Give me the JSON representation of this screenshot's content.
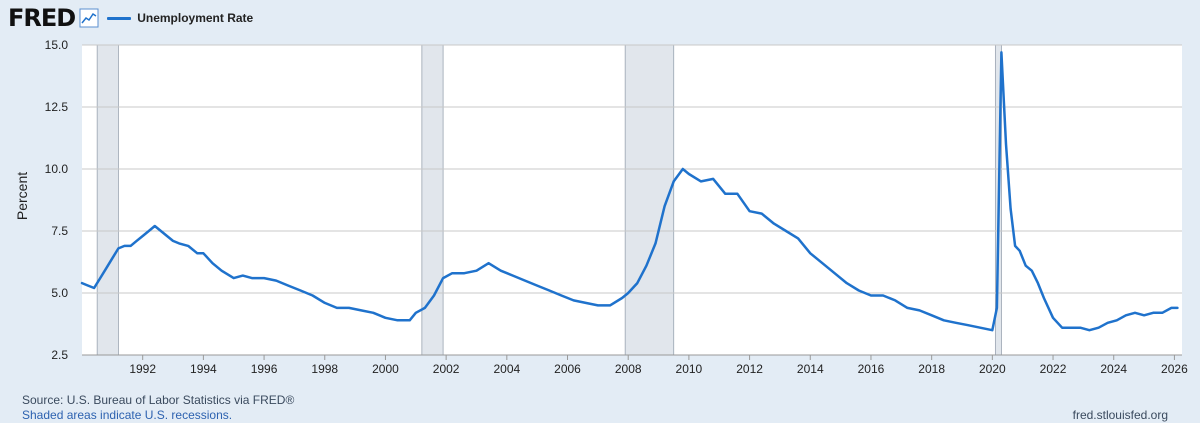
{
  "header": {
    "logo_text": "FRED",
    "logo_icon": "line-chart-icon",
    "legend_label": "Unemployment Rate",
    "legend_color": "#1f72cc"
  },
  "footer": {
    "source": "Source: U.S. Bureau of Labor Statistics via FRED®",
    "recession_note": "Shaded areas indicate U.S. recessions.",
    "site": "fred.stlouisfed.org"
  },
  "colors": {
    "background": "#e3ecf5",
    "plot_background": "#ffffff",
    "line": "#1f72cc",
    "recession": "#e1e6ec",
    "grid": "#c8c8c8",
    "recession_link": "#2d62b0"
  },
  "chart_data": {
    "type": "line",
    "title": "",
    "xlabel": "",
    "ylabel": "Percent",
    "xlim": [
      1990.0,
      2026.25
    ],
    "ylim": [
      2.5,
      15.0
    ],
    "yticks": [
      2.5,
      5.0,
      7.5,
      10.0,
      12.5,
      15.0
    ],
    "ytick_labels": [
      "2.5",
      "5.0",
      "7.5",
      "10.0",
      "12.5",
      "15.0"
    ],
    "xticks": [
      1992,
      1994,
      1996,
      1998,
      2000,
      2002,
      2004,
      2006,
      2008,
      2010,
      2012,
      2014,
      2016,
      2018,
      2020,
      2022,
      2024,
      2026
    ],
    "xtick_labels": [
      "1992",
      "1994",
      "1996",
      "1998",
      "2000",
      "2002",
      "2004",
      "2006",
      "2008",
      "2010",
      "2012",
      "2014",
      "2016",
      "2018",
      "2020",
      "2022",
      "2024",
      "2026"
    ],
    "grid": true,
    "legend_position": "top-left",
    "recessions": [
      {
        "start": 1990.5,
        "end": 1991.2
      },
      {
        "start": 2001.2,
        "end": 2001.9
      },
      {
        "start": 2007.9,
        "end": 2009.5
      },
      {
        "start": 2020.1,
        "end": 2020.3
      }
    ],
    "series": [
      {
        "name": "Unemployment Rate",
        "x": [
          1990.0,
          1990.2,
          1990.4,
          1990.6,
          1990.8,
          1991.0,
          1991.2,
          1991.4,
          1991.6,
          1991.8,
          1992.0,
          1992.2,
          1992.4,
          1992.6,
          1992.8,
          1993.0,
          1993.2,
          1993.5,
          1993.8,
          1994.0,
          1994.3,
          1994.6,
          1995.0,
          1995.3,
          1995.6,
          1996.0,
          1996.4,
          1996.8,
          1997.2,
          1997.6,
          1998.0,
          1998.4,
          1998.8,
          1999.2,
          1999.6,
          2000.0,
          2000.4,
          2000.8,
          2001.0,
          2001.3,
          2001.6,
          2001.9,
          2002.2,
          2002.6,
          2003.0,
          2003.4,
          2003.8,
          2004.2,
          2004.6,
          2005.0,
          2005.4,
          2005.8,
          2006.2,
          2006.6,
          2007.0,
          2007.4,
          2007.8,
          2008.0,
          2008.3,
          2008.6,
          2008.9,
          2009.2,
          2009.5,
          2009.8,
          2010.0,
          2010.4,
          2010.8,
          2011.2,
          2011.6,
          2012.0,
          2012.4,
          2012.8,
          2013.2,
          2013.6,
          2014.0,
          2014.4,
          2014.8,
          2015.2,
          2015.6,
          2016.0,
          2016.4,
          2016.8,
          2017.2,
          2017.6,
          2018.0,
          2018.4,
          2018.8,
          2019.2,
          2019.6,
          2020.0,
          2020.15,
          2020.3,
          2020.45,
          2020.6,
          2020.75,
          2020.9,
          2021.1,
          2021.3,
          2021.5,
          2021.7,
          2022.0,
          2022.3,
          2022.6,
          2022.9,
          2023.2,
          2023.5,
          2023.8,
          2024.1,
          2024.4,
          2024.7,
          2025.0,
          2025.3,
          2025.6,
          2025.9,
          2026.1
        ],
        "values": [
          5.4,
          5.3,
          5.2,
          5.6,
          6.0,
          6.4,
          6.8,
          6.9,
          6.9,
          7.1,
          7.3,
          7.5,
          7.7,
          7.5,
          7.3,
          7.1,
          7.0,
          6.9,
          6.6,
          6.6,
          6.2,
          5.9,
          5.6,
          5.7,
          5.6,
          5.6,
          5.5,
          5.3,
          5.1,
          4.9,
          4.6,
          4.4,
          4.4,
          4.3,
          4.2,
          4.0,
          3.9,
          3.9,
          4.2,
          4.4,
          4.9,
          5.6,
          5.8,
          5.8,
          5.9,
          6.2,
          5.9,
          5.7,
          5.5,
          5.3,
          5.1,
          4.9,
          4.7,
          4.6,
          4.5,
          4.5,
          4.8,
          5.0,
          5.4,
          6.1,
          7.0,
          8.5,
          9.5,
          10.0,
          9.8,
          9.5,
          9.6,
          9.0,
          9.0,
          8.3,
          8.2,
          7.8,
          7.5,
          7.2,
          6.6,
          6.2,
          5.8,
          5.4,
          5.1,
          4.9,
          4.9,
          4.7,
          4.4,
          4.3,
          4.1,
          3.9,
          3.8,
          3.7,
          3.6,
          3.5,
          4.4,
          14.7,
          11.0,
          8.4,
          6.9,
          6.7,
          6.1,
          5.9,
          5.4,
          4.8,
          4.0,
          3.6,
          3.6,
          3.6,
          3.5,
          3.6,
          3.8,
          3.9,
          4.1,
          4.2,
          4.1,
          4.2,
          4.2,
          4.4,
          4.4
        ]
      }
    ]
  }
}
